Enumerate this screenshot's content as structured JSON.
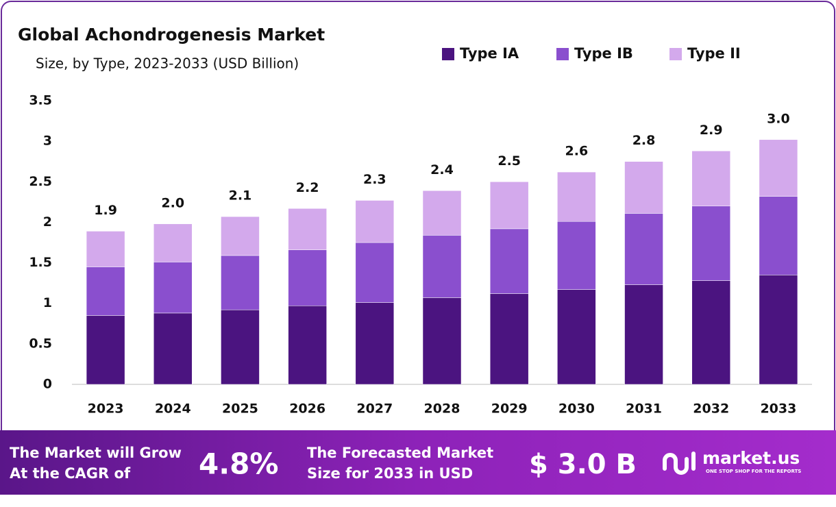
{
  "chart_data": {
    "type": "stacked_bar",
    "title": "Global Achondrogenesis Market",
    "subtitle": "Size, by Type, 2023-2033 (USD Billion)",
    "categories": [
      "2023",
      "2024",
      "2025",
      "2026",
      "2027",
      "2028",
      "2029",
      "2030",
      "2031",
      "2032",
      "2033"
    ],
    "series": [
      {
        "name": "Type IA",
        "color": "#4b1480",
        "values": [
          0.85,
          0.88,
          0.92,
          0.97,
          1.01,
          1.07,
          1.12,
          1.17,
          1.23,
          1.28,
          1.35
        ]
      },
      {
        "name": "Type IB",
        "color": "#8a4fce",
        "values": [
          0.6,
          0.63,
          0.67,
          0.69,
          0.74,
          0.77,
          0.8,
          0.84,
          0.88,
          0.92,
          0.97
        ]
      },
      {
        "name": "Type II",
        "color": "#d3a9ec",
        "values": [
          0.44,
          0.47,
          0.48,
          0.51,
          0.52,
          0.55,
          0.58,
          0.61,
          0.64,
          0.68,
          0.7
        ]
      }
    ],
    "totals": {
      "values": [
        1.9,
        2.0,
        2.1,
        2.2,
        2.3,
        2.4,
        2.5,
        2.6,
        2.8,
        2.9,
        3.0
      ],
      "value_labels": [
        "1.9",
        "2.0",
        "2.1",
        "2.2",
        "2.3",
        "2.4",
        "2.5",
        "2.6",
        "2.8",
        "2.9",
        "3.0"
      ]
    },
    "ylim": [
      0,
      3.5
    ],
    "yticks": [
      0,
      0.5,
      1,
      1.5,
      2,
      2.5,
      3,
      3.5
    ],
    "grid": false,
    "legend": "top-right"
  },
  "footer": {
    "cagr_text_1": "The Market will Grow",
    "cagr_text_2": "At the CAGR of",
    "cagr": "4.8%",
    "forecast_text_1": "The Forecasted Market",
    "forecast_text_2": "Size for 2033 in USD",
    "forecast": "$ 3.0 B",
    "brand": "market.us",
    "tagline": "ONE STOP SHOP FOR THE REPORTS"
  }
}
